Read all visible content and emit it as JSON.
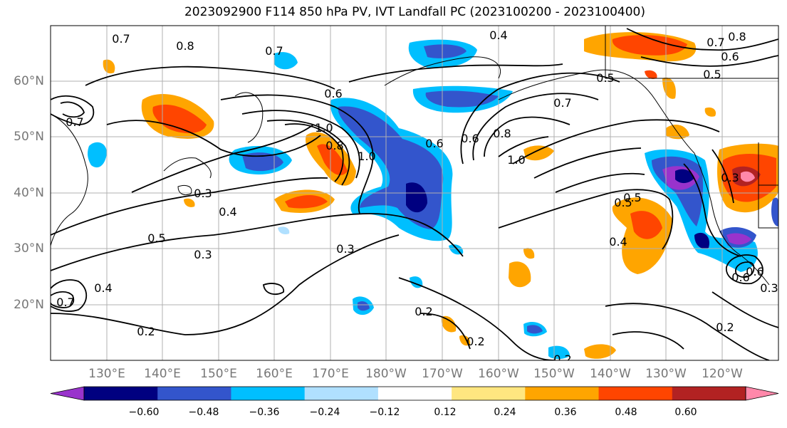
{
  "title": "2023092900 F114 850 hPa PV, IVT Landfall PC (2023100200 - 2023100400)",
  "lat_labels": [
    "60°N",
    "50°N",
    "40°N",
    "30°N",
    "20°N"
  ],
  "lon_labels": [
    "130°E",
    "140°E",
    "150°E",
    "160°E",
    "170°E",
    "180°W",
    "170°W",
    "160°W",
    "150°W",
    "140°W",
    "130°W",
    "120°W"
  ],
  "contour_labels": [
    "0.7",
    "0.8",
    "0.7",
    "0.6",
    "0.7",
    "0.4",
    "0.8",
    "0.7",
    "0.6",
    "0.5",
    "0.5",
    "0.7",
    "0.6",
    "1.0",
    "0.8",
    "1.0",
    "0.6",
    "0.8",
    "1.0",
    "0.3",
    "0.4",
    "0.5",
    "0.3",
    "0.5",
    "0.5",
    "0.4",
    "0.3",
    "0.3",
    "0.2",
    "0.2",
    "0.2",
    "0.2",
    "0.2",
    "0.7",
    "0.4",
    "0.6",
    "0.6",
    "0.3"
  ],
  "colorbar": {
    "colors": [
      "#9933cc",
      "#000080",
      "#3355cc",
      "#00bfff",
      "#b0e0ff",
      "#ffffff",
      "#ffe680",
      "#ffa500",
      "#ff4500",
      "#b22222",
      "#ff88aa"
    ],
    "tick_labels": [
      "−0.60",
      "−0.48",
      "−0.36",
      "−0.24",
      "−0.12",
      "0.12",
      "0.24",
      "0.36",
      "0.48",
      "0.60"
    ]
  }
}
